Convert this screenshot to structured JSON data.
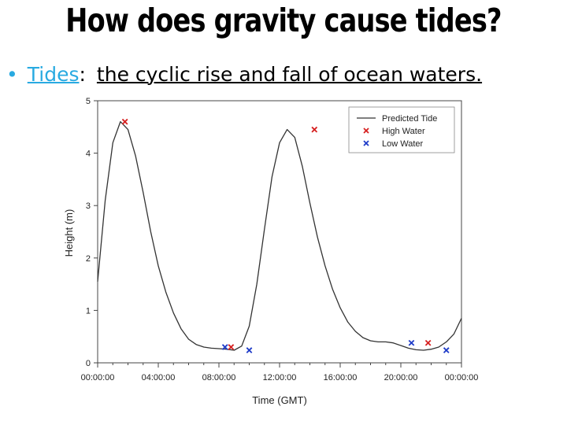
{
  "slide": {
    "title": "How does gravity cause tides?",
    "bullet": {
      "term": "Tides",
      "colon": ":",
      "definition": "the cyclic rise and fall of ocean waters."
    }
  },
  "chart_data": {
    "type": "line",
    "xlabel": "Time (GMT)",
    "ylabel": "Height (m)",
    "xlim": [
      0,
      24
    ],
    "ylim": [
      0,
      5
    ],
    "x_tick_values": [
      0,
      4,
      8,
      12,
      16,
      20,
      24
    ],
    "x_tick_labels": [
      "00:00:00",
      "04:00:00",
      "08:00:00",
      "12:00:00",
      "16:00:00",
      "20:00:00",
      "00:00:00"
    ],
    "y_tick_values": [
      0,
      1,
      2,
      3,
      4,
      5
    ],
    "legend_position": "top-right",
    "series": [
      {
        "name": "Predicted Tide",
        "color": "#333333",
        "x": [
          0,
          0.5,
          1,
          1.5,
          2,
          2.5,
          3,
          3.5,
          4,
          4.5,
          5,
          5.5,
          6,
          6.5,
          7,
          7.5,
          8,
          8.5,
          9,
          9.5,
          10,
          10.5,
          11,
          11.5,
          12,
          12.5,
          13,
          13.5,
          14,
          14.5,
          15,
          15.5,
          16,
          16.5,
          17,
          17.5,
          18,
          18.5,
          19,
          19.5,
          20,
          20.5,
          21,
          21.5,
          22,
          22.5,
          23,
          23.5,
          24
        ],
        "values": [
          1.55,
          3.1,
          4.2,
          4.6,
          4.45,
          3.95,
          3.25,
          2.5,
          1.85,
          1.35,
          0.95,
          0.65,
          0.45,
          0.35,
          0.3,
          0.28,
          0.27,
          0.26,
          0.24,
          0.32,
          0.7,
          1.5,
          2.55,
          3.55,
          4.2,
          4.45,
          4.3,
          3.75,
          3.05,
          2.4,
          1.85,
          1.4,
          1.05,
          0.78,
          0.6,
          0.48,
          0.42,
          0.4,
          0.4,
          0.38,
          0.33,
          0.28,
          0.25,
          0.24,
          0.26,
          0.3,
          0.4,
          0.55,
          0.85
        ]
      }
    ],
    "markers": [
      {
        "name": "High Water",
        "color": "#d62020",
        "points": [
          [
            1.8,
            4.6
          ],
          [
            14.3,
            4.45
          ],
          [
            8.8,
            0.3
          ],
          [
            21.8,
            0.38
          ]
        ]
      },
      {
        "name": "Low Water",
        "color": "#1e3bc8",
        "points": [
          [
            8.4,
            0.3
          ],
          [
            10.0,
            0.24
          ],
          [
            20.7,
            0.38
          ],
          [
            23.0,
            0.24
          ]
        ]
      }
    ]
  }
}
